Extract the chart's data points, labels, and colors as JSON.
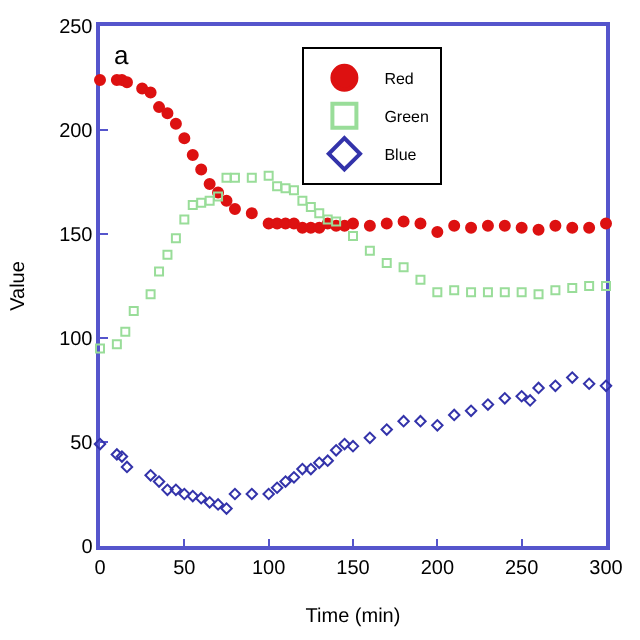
{
  "chart_data": {
    "type": "scatter",
    "xlabel": "Time (min)",
    "ylabel": "Value",
    "annotations": [
      "a"
    ],
    "xlim": [
      0,
      300
    ],
    "ylim": [
      0,
      250
    ],
    "xticks": [
      0,
      50,
      100,
      150,
      200,
      250,
      300
    ],
    "yticks": [
      0,
      50,
      100,
      150,
      200,
      250
    ],
    "legend": "top right",
    "series": [
      {
        "name": "Red",
        "color": "#dd1111",
        "marker": "circle",
        "x": [
          0,
          10,
          13,
          16,
          25,
          30,
          35,
          40,
          45,
          50,
          55,
          60,
          65,
          70,
          75,
          80,
          90,
          100,
          105,
          110,
          115,
          120,
          125,
          130,
          135,
          140,
          145,
          150,
          160,
          170,
          180,
          190,
          200,
          210,
          220,
          230,
          240,
          250,
          260,
          270,
          280,
          290,
          300
        ],
        "values": [
          224,
          224,
          224,
          223,
          220,
          218,
          211,
          208,
          203,
          196,
          188,
          181,
          174,
          170,
          166,
          162,
          160,
          155,
          155,
          155,
          155,
          153,
          153,
          153,
          155,
          154,
          154,
          155,
          154,
          155,
          156,
          155,
          151,
          154,
          153,
          154,
          154,
          153,
          152,
          154,
          153,
          153,
          155
        ]
      },
      {
        "name": "Green",
        "color": "#99dd99",
        "marker": "square",
        "x": [
          0,
          10,
          15,
          20,
          30,
          35,
          40,
          45,
          50,
          55,
          60,
          65,
          70,
          75,
          80,
          90,
          100,
          105,
          110,
          115,
          120,
          125,
          130,
          135,
          140,
          150,
          160,
          170,
          180,
          190,
          200,
          210,
          220,
          230,
          240,
          250,
          260,
          270,
          280,
          290,
          300
        ],
        "values": [
          95,
          97,
          103,
          113,
          121,
          132,
          140,
          148,
          157,
          164,
          165,
          166,
          168,
          177,
          177,
          177,
          178,
          173,
          172,
          171,
          166,
          163,
          160,
          157,
          156,
          149,
          142,
          136,
          134,
          128,
          122,
          123,
          122,
          122,
          122,
          122,
          121,
          123,
          124,
          125,
          125
        ]
      },
      {
        "name": "Blue",
        "color": "#3333aa",
        "marker": "diamond",
        "x": [
          0,
          10,
          13,
          16,
          30,
          35,
          40,
          45,
          50,
          55,
          60,
          65,
          70,
          75,
          80,
          90,
          100,
          105,
          110,
          115,
          120,
          125,
          130,
          135,
          140,
          145,
          150,
          160,
          170,
          180,
          190,
          200,
          210,
          220,
          230,
          240,
          250,
          255,
          260,
          270,
          280,
          290,
          300
        ],
        "values": [
          49,
          44,
          43,
          38,
          34,
          31,
          27,
          27,
          25,
          24,
          23,
          21,
          20,
          18,
          25,
          25,
          25,
          28,
          31,
          33,
          37,
          37,
          40,
          41,
          46,
          49,
          48,
          52,
          56,
          60,
          60,
          58,
          63,
          65,
          68,
          71,
          72,
          70,
          76,
          77,
          81,
          78,
          77
        ]
      }
    ]
  }
}
